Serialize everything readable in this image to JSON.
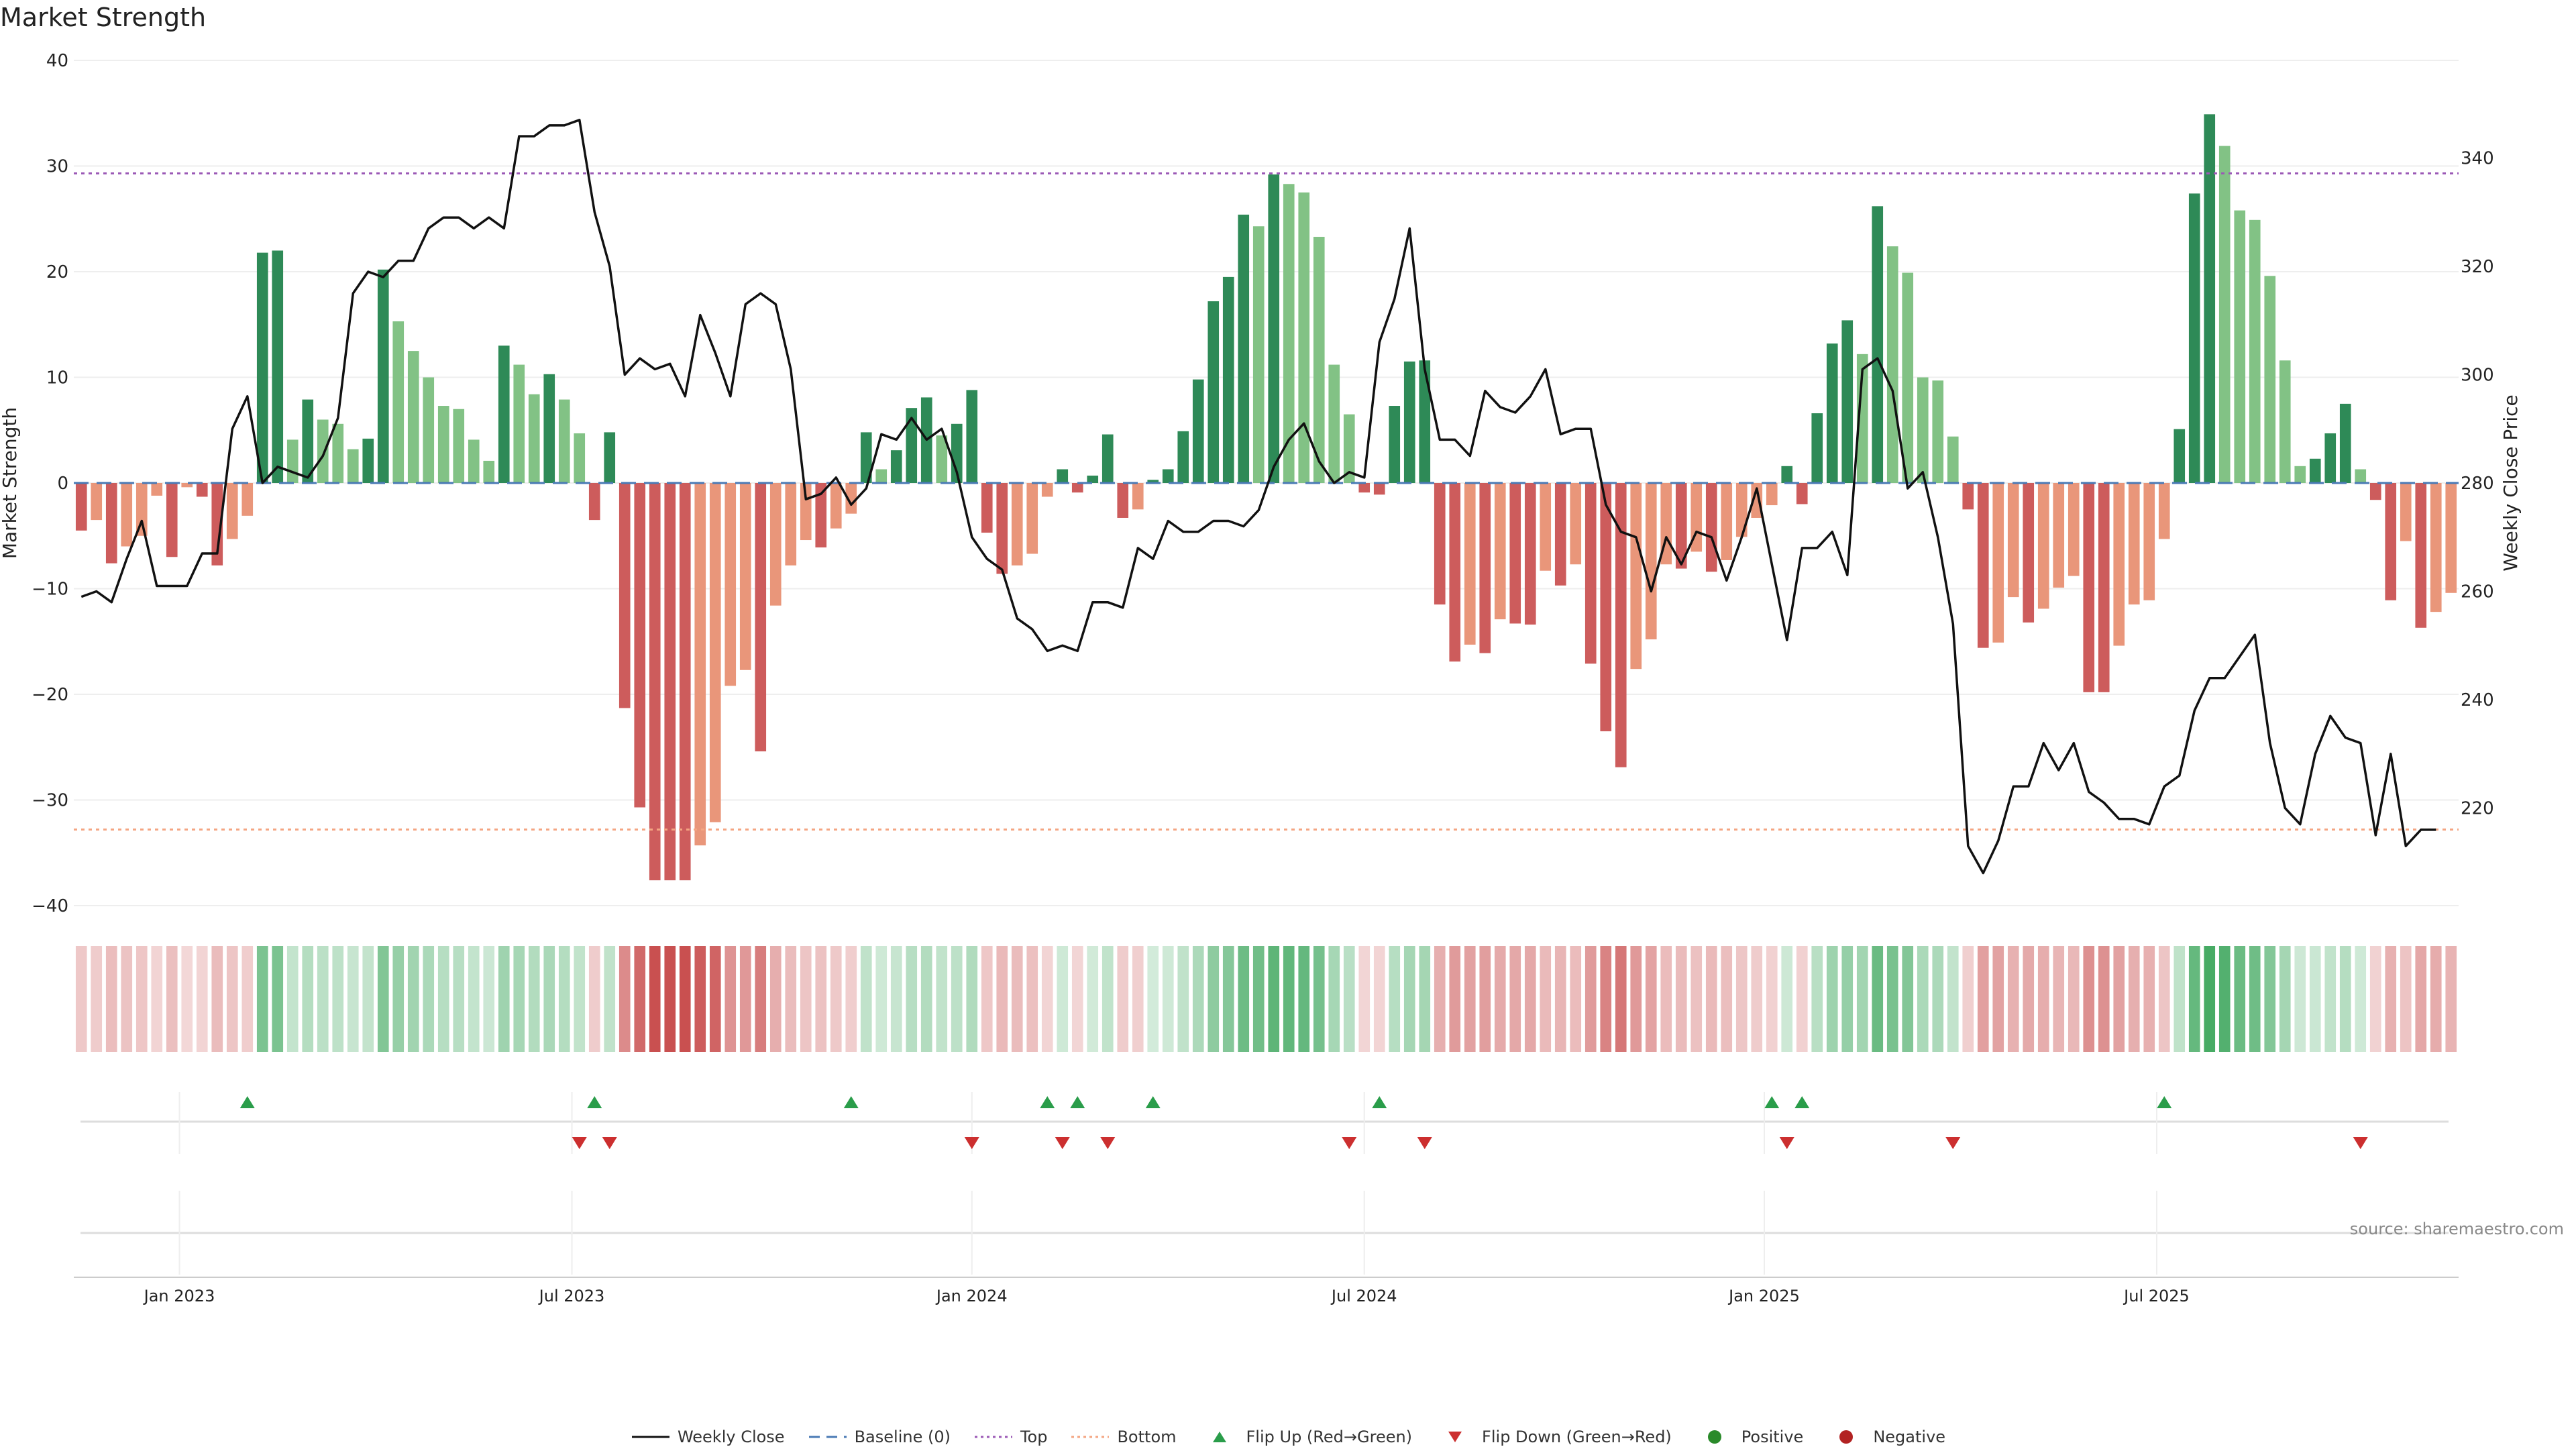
{
  "chart_title": "Market Strength",
  "source_note": "source: sharemaestro.com",
  "colors": {
    "strong_green": "#2e8a57",
    "light_green": "#82c285",
    "strong_red": "#cd5c5c",
    "light_red": "#e9967a",
    "close_line": "#111111",
    "baseline": "#4a7ab5",
    "top": "#9b59b6",
    "bottom": "#f4a582",
    "flip_up": "#2a9d4a",
    "flip_down": "#cc2f2f",
    "positive": "#2a8a2a",
    "negative": "#b22222"
  },
  "legend": [
    {
      "key": "close",
      "label": "Weekly Close",
      "style": "line"
    },
    {
      "key": "baseline",
      "label": "Baseline (0)",
      "style": "dash"
    },
    {
      "key": "top",
      "label": "Top",
      "style": "dot"
    },
    {
      "key": "bottom",
      "label": "Bottom",
      "style": "dot"
    },
    {
      "key": "flip_up",
      "label": "Flip Up (Red→Green)",
      "style": "tri-up"
    },
    {
      "key": "flip_down",
      "label": "Flip Down (Green→Red)",
      "style": "tri-down"
    },
    {
      "key": "positive",
      "label": "Positive",
      "style": "circle"
    },
    {
      "key": "negative",
      "label": "Negative",
      "style": "circle"
    }
  ],
  "chart_data": {
    "type": "bar",
    "title": "Market Strength",
    "ylabel_left": "Market Strength",
    "ylabel_right": "Weekly Close Price",
    "ylim_left": [
      -40,
      40
    ],
    "yticks_left": [
      40,
      30,
      20,
      10,
      0,
      -10,
      -20,
      -30,
      -40
    ],
    "ylim_right": [
      202,
      358
    ],
    "yticks_right": [
      340,
      320,
      300,
      280,
      260,
      240,
      220
    ],
    "top_threshold": 29.3,
    "bottom_threshold": -32.8,
    "x_ticks": [
      {
        "label": "Jan 2023",
        "week": 7
      },
      {
        "label": "Jul 2023",
        "week": 33
      },
      {
        "label": "Jan 2024",
        "week": 59.5
      },
      {
        "label": "Jul 2024",
        "week": 85.5
      },
      {
        "label": "Jan 2025",
        "week": 112
      },
      {
        "label": "Jul 2025",
        "week": 138
      }
    ],
    "strength": [
      -4.5,
      -3.5,
      -7.6,
      -6,
      -5,
      -1.2,
      -7,
      -0.4,
      -1.3,
      -7.8,
      -5.3,
      -3.1,
      21.8,
      22,
      4.1,
      7.9,
      6,
      5.6,
      3.2,
      4.2,
      20.2,
      15.3,
      12.5,
      10,
      7.3,
      7,
      4.1,
      2.1,
      13,
      11.2,
      8.4,
      10.3,
      7.9,
      4.7,
      -3.5,
      4.8,
      -21.3,
      -30.7,
      -37.6,
      -37.6,
      -37.6,
      -34.3,
      -32.1,
      -19.2,
      -17.7,
      -25.4,
      -11.6,
      -7.8,
      -5.4,
      -6.1,
      -4.3,
      -2.9,
      4.8,
      1.3,
      3.1,
      7.1,
      8.1,
      4.5,
      5.6,
      8.8,
      -4.7,
      -8.6,
      -7.8,
      -6.7,
      -1.3,
      1.3,
      -0.9,
      0.7,
      4.6,
      -3.3,
      -2.5,
      0.3,
      1.3,
      4.9,
      9.8,
      17.2,
      19.5,
      25.4,
      24.3,
      29.2,
      28.3,
      27.5,
      23.3,
      11.2,
      6.5,
      -0.9,
      -1.1,
      7.3,
      11.5,
      11.6,
      -11.5,
      -16.9,
      -15.3,
      -16.1,
      -12.9,
      -13.3,
      -13.4,
      -8.3,
      -9.7,
      -7.7,
      -17.1,
      -23.5,
      -26.9,
      -17.6,
      -14.8,
      -7.7,
      -8.1,
      -6.5,
      -8.4,
      -7.3,
      -5.1,
      -3.3,
      -2.1,
      1.6,
      -2,
      6.6,
      13.2,
      15.4,
      12.2,
      26.2,
      22.4,
      19.9,
      10,
      9.7,
      4.4,
      -2.5,
      -15.6,
      -15.1,
      -10.8,
      -13.2,
      -11.9,
      -9.9,
      -8.8,
      -19.8,
      -19.8,
      -15.4,
      -11.5,
      -11.1,
      -5.3,
      5.1,
      27.4,
      34.9,
      31.9,
      25.8,
      24.9,
      19.6,
      11.6,
      1.6,
      2.3,
      4.7,
      7.5,
      1.3,
      -1.6,
      -11.1,
      -5.5,
      -13.7,
      -12.2,
      -10.4
    ],
    "weekly_close": [
      259,
      260,
      258,
      266,
      273,
      261,
      261,
      261,
      267,
      267,
      290,
      296,
      280,
      283,
      282,
      281,
      285,
      292,
      315,
      319,
      318,
      321,
      321,
      327,
      329,
      329,
      327,
      329,
      327,
      344,
      344,
      346,
      346,
      347,
      330,
      320,
      300,
      303,
      301,
      302,
      296,
      311,
      304,
      296,
      313,
      315,
      313,
      301,
      277,
      278,
      281,
      276,
      279,
      289,
      288,
      292,
      288,
      290,
      282,
      270,
      266,
      264,
      255,
      253,
      249,
      250,
      249,
      258,
      258,
      257,
      268,
      266,
      273,
      271,
      271,
      273,
      273,
      272,
      275,
      283,
      288,
      291,
      284,
      280,
      282,
      281,
      306,
      314,
      327,
      301,
      288,
      288,
      285,
      297,
      294,
      293,
      296,
      301,
      289,
      290,
      290,
      276,
      271,
      270,
      260,
      270,
      265,
      271,
      270,
      262,
      270,
      279,
      265,
      251,
      268,
      268,
      271,
      263,
      301,
      303,
      297,
      279,
      282,
      270,
      254,
      213,
      208,
      214,
      224,
      224,
      232,
      227,
      232,
      223,
      221,
      218,
      218,
      217,
      224,
      226,
      238,
      244,
      244,
      248,
      252,
      232,
      220,
      217,
      230,
      237,
      233,
      232,
      215,
      230,
      213,
      216,
      216
    ],
    "flips_up": [
      11.5,
      34.5,
      51.5,
      64.5,
      66.5,
      71.5,
      86.5,
      112.5,
      114.5,
      138.5
    ],
    "flips_down": [
      33.5,
      35.5,
      59.5,
      65.5,
      68.5,
      84.5,
      89.5,
      113.5,
      124.5,
      151.5
    ]
  }
}
